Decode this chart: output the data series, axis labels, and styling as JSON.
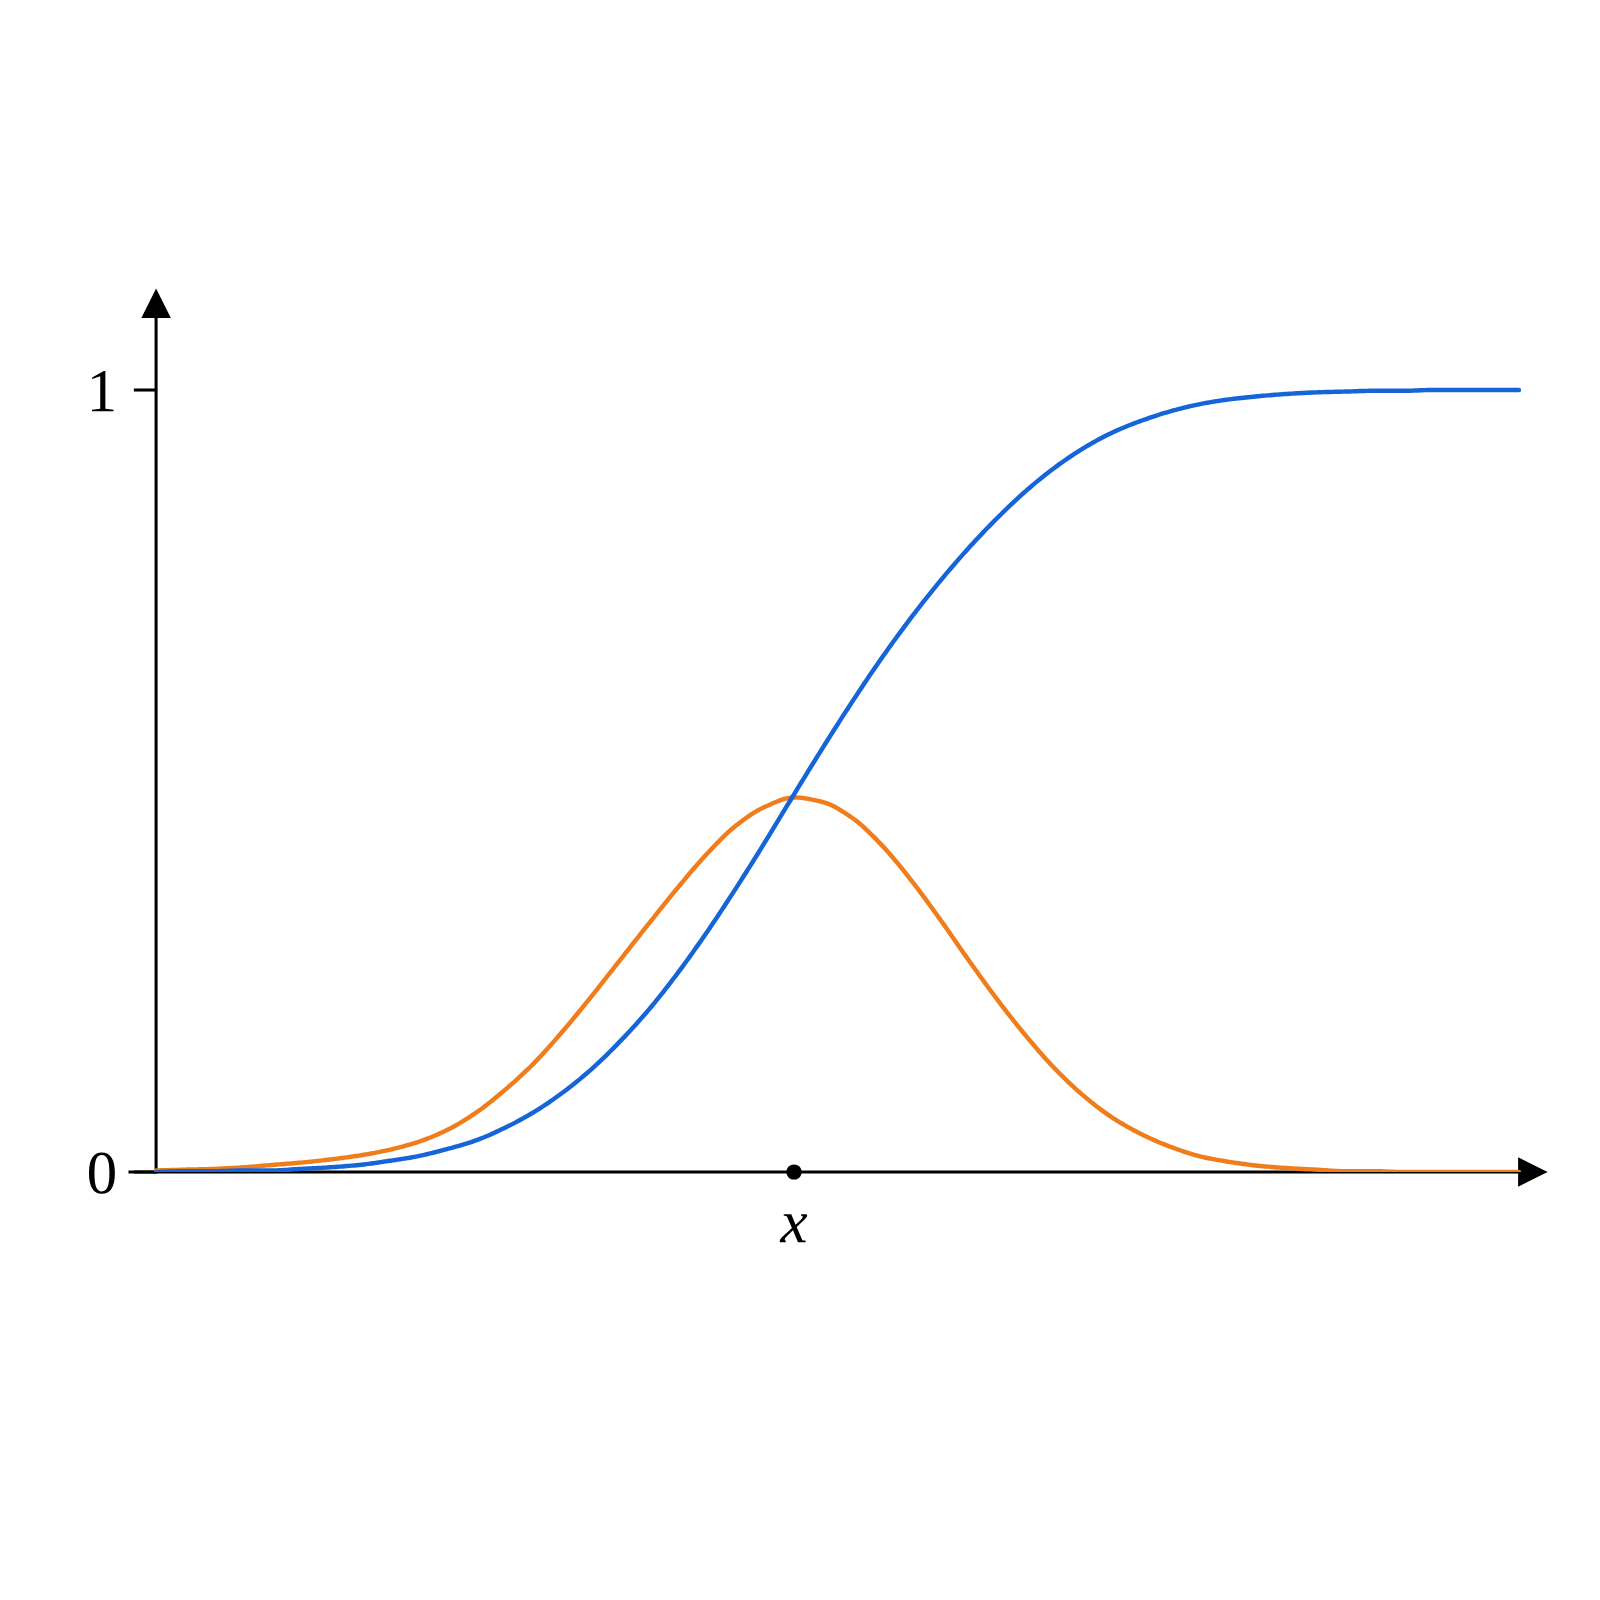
{
  "chart_data": {
    "type": "line",
    "categories": [
      null,
      null,
      null,
      null,
      null,
      null,
      null,
      null,
      null,
      null,
      null,
      null,
      null,
      null,
      null,
      null,
      null,
      null,
      null,
      null,
      null,
      null,
      "x",
      null,
      null,
      null,
      null,
      null,
      null,
      null,
      null,
      null,
      null,
      null,
      null,
      null,
      null,
      null,
      null,
      null,
      null,
      null,
      null,
      null,
      null,
      null,
      null,
      null
    ],
    "series": [
      {
        "color": "#f07d1c",
        "values": [
          0.002,
          0.003,
          0.004,
          0.006,
          0.009,
          0.012,
          0.016,
          0.021,
          0.028,
          0.038,
          0.053,
          0.075,
          0.104,
          0.138,
          0.179,
          0.224,
          0.271,
          0.318,
          0.364,
          0.407,
          0.443,
          0.467,
          0.479,
          0.473,
          0.453,
          0.419,
          0.375,
          0.325,
          0.272,
          0.221,
          0.174,
          0.132,
          0.097,
          0.069,
          0.048,
          0.032,
          0.02,
          0.013,
          0.008,
          0.005,
          0.003,
          0.001,
          0.001,
          0,
          0,
          0,
          0,
          0
        ]
      },
      {
        "color": "#1565d8",
        "values": [
          0,
          0.001,
          0.001,
          0.002,
          0.002,
          0.004,
          0.006,
          0.009,
          0.014,
          0.02,
          0.029,
          0.04,
          0.056,
          0.076,
          0.101,
          0.131,
          0.167,
          0.208,
          0.255,
          0.307,
          0.363,
          0.422,
          0.483,
          0.543,
          0.601,
          0.656,
          0.707,
          0.754,
          0.797,
          0.836,
          0.871,
          0.901,
          0.926,
          0.946,
          0.961,
          0.973,
          0.982,
          0.988,
          0.992,
          0.995,
          0.997,
          0.998,
          0.999,
          0.999,
          1,
          1,
          1,
          1
        ]
      },
      {
        "type": "scatter",
        "color": "#000000",
        "values": [
          null,
          null,
          null,
          null,
          null,
          null,
          null,
          null,
          null,
          null,
          null,
          null,
          null,
          null,
          null,
          null,
          null,
          null,
          null,
          null,
          null,
          null,
          0,
          null,
          null,
          null,
          null,
          null,
          null,
          null,
          null,
          null,
          null,
          null,
          null,
          null,
          null,
          null,
          null,
          null,
          null,
          null,
          null,
          null,
          null,
          null,
          null,
          null
        ]
      }
    ],
    "ylim": [
      0,
      1.11
    ],
    "yticks": [
      0,
      1
    ]
  }
}
